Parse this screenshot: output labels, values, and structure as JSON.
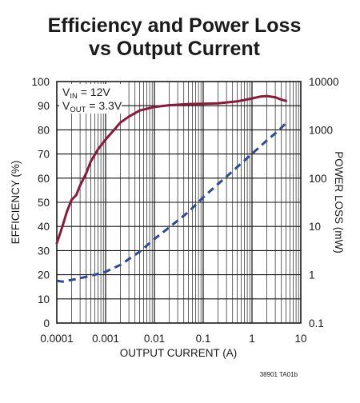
{
  "chart_data": {
    "type": "line",
    "title_lines": [
      "Efficiency and Power Loss",
      "vs Output Current"
    ],
    "xlabel": "OUTPUT CURRENT (A)",
    "ylabel": "EFFICIENCY (%)",
    "y2label": "POWER LOSS (mW)",
    "x_scale": "log",
    "xlim": [
      0.0001,
      10
    ],
    "ylim": [
      0,
      100
    ],
    "y2_scale": "log",
    "y2lim": [
      0.1,
      10000
    ],
    "x_ticks": [
      "0.0001",
      "0.001",
      "0.01",
      "0.1",
      "1",
      "10"
    ],
    "y_ticks": [
      "0",
      "10",
      "20",
      "30",
      "40",
      "50",
      "60",
      "70",
      "80",
      "90",
      "100"
    ],
    "y2_ticks": [
      "0.1",
      "1",
      "10",
      "100",
      "1000",
      "10000"
    ],
    "grid": true,
    "annotation": {
      "line1": {
        "main": "V",
        "sub": "IN",
        "rest": " = 12V"
      },
      "line2": {
        "main": "V",
        "sub": "OUT",
        "rest": " = 3.3V"
      }
    },
    "figure_id": "38901 TA01b",
    "series": [
      {
        "axis": "left",
        "color": "#8b1a3a",
        "style": "solid",
        "x": [
          0.0001,
          0.00013,
          0.00016,
          0.0002,
          0.00025,
          0.0003,
          0.0004,
          0.0005,
          0.0007,
          0.001,
          0.0015,
          0.002,
          0.003,
          0.005,
          0.01,
          0.02,
          0.05,
          0.1,
          0.2,
          0.5,
          1,
          1.5,
          2,
          3,
          4,
          5
        ],
        "y": [
          33,
          40,
          46,
          51,
          53,
          57,
          62,
          67,
          72,
          76,
          80,
          83,
          85.5,
          88,
          89.5,
          90.2,
          90.7,
          90.8,
          91,
          91.8,
          93,
          93.8,
          94,
          93.5,
          92.5,
          92
        ]
      },
      {
        "axis": "right",
        "color": "#2b4a9a",
        "style": "dashed",
        "x": [
          0.0001,
          0.00013,
          0.0002,
          0.0003,
          0.0005,
          0.001,
          0.002,
          0.005,
          0.01,
          0.02,
          0.05,
          0.1,
          0.2,
          0.5,
          1,
          2,
          3,
          4,
          5
        ],
        "y": [
          0.75,
          0.72,
          0.78,
          0.85,
          0.95,
          1.15,
          1.6,
          3,
          5.5,
          9.5,
          20,
          40,
          75,
          170,
          320,
          600,
          850,
          1100,
          1400
        ]
      }
    ]
  }
}
